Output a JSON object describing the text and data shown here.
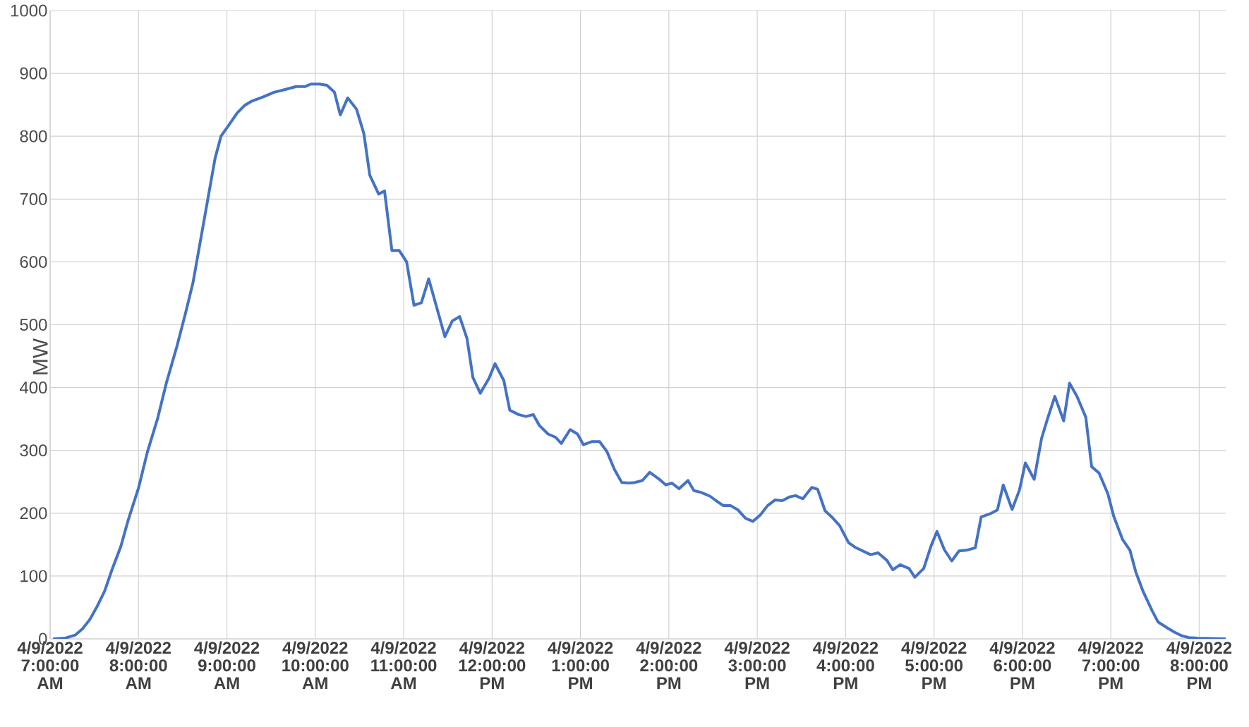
{
  "chart_data": {
    "type": "line",
    "ylabel": "MW",
    "xlim": [
      "2022-04-09T07:00",
      "2022-04-09T20:18"
    ],
    "ylim": [
      0,
      1000
    ],
    "xticks": [
      {
        "value": "2022-04-09T07:00",
        "label": "4/9/2022 7:00:00 AM"
      },
      {
        "value": "2022-04-09T08:00",
        "label": "4/9/2022 8:00:00 AM"
      },
      {
        "value": "2022-04-09T09:00",
        "label": "4/9/2022 9:00:00 AM"
      },
      {
        "value": "2022-04-09T10:00",
        "label": "4/9/2022 10:00:00 AM"
      },
      {
        "value": "2022-04-09T11:00",
        "label": "4/9/2022 11:00:00 AM"
      },
      {
        "value": "2022-04-09T12:00",
        "label": "4/9/2022 12:00:00 PM"
      },
      {
        "value": "2022-04-09T13:00",
        "label": "4/9/2022 1:00:00 PM"
      },
      {
        "value": "2022-04-09T14:00",
        "label": "4/9/2022 2:00:00 PM"
      },
      {
        "value": "2022-04-09T15:00",
        "label": "4/9/2022 3:00:00 PM"
      },
      {
        "value": "2022-04-09T16:00",
        "label": "4/9/2022 4:00:00 PM"
      },
      {
        "value": "2022-04-09T17:00",
        "label": "4/9/2022 5:00:00 PM"
      },
      {
        "value": "2022-04-09T18:00",
        "label": "4/9/2022 6:00:00 PM"
      },
      {
        "value": "2022-04-09T19:00",
        "label": "4/9/2022 7:00:00 PM"
      },
      {
        "value": "2022-04-09T20:00",
        "label": "4/9/2022 8:00:00 PM"
      }
    ],
    "yticks": [
      0,
      100,
      200,
      300,
      400,
      500,
      600,
      700,
      800,
      900,
      1000
    ],
    "grid": true,
    "marker": "none",
    "line_style": "solid",
    "series": [
      {
        "color": "#4472c4",
        "x": [
          "2022-04-09T07:02",
          "2022-04-09T07:10",
          "2022-04-09T07:17",
          "2022-04-09T07:22",
          "2022-04-09T07:27",
          "2022-04-09T07:32",
          "2022-04-09T07:37",
          "2022-04-09T07:42",
          "2022-04-09T07:48",
          "2022-04-09T07:53",
          "2022-04-09T08:00",
          "2022-04-09T08:06",
          "2022-04-09T08:13",
          "2022-04-09T08:19",
          "2022-04-09T08:26",
          "2022-04-09T08:32",
          "2022-04-09T08:37",
          "2022-04-09T08:42",
          "2022-04-09T08:47",
          "2022-04-09T08:52",
          "2022-04-09T08:56",
          "2022-04-09T09:02",
          "2022-04-09T09:07",
          "2022-04-09T09:12",
          "2022-04-09T09:17",
          "2022-04-09T09:25",
          "2022-04-09T09:32",
          "2022-04-09T09:39",
          "2022-04-09T09:47",
          "2022-04-09T09:53",
          "2022-04-09T09:57",
          "2022-04-09T10:03",
          "2022-04-09T10:08",
          "2022-04-09T10:13",
          "2022-04-09T10:17",
          "2022-04-09T10:22",
          "2022-04-09T10:28",
          "2022-04-09T10:33",
          "2022-04-09T10:37",
          "2022-04-09T10:43",
          "2022-04-09T10:47",
          "2022-04-09T10:52",
          "2022-04-09T10:57",
          "2022-04-09T11:02",
          "2022-04-09T11:07",
          "2022-04-09T11:12",
          "2022-04-09T11:17",
          "2022-04-09T11:28",
          "2022-04-09T11:33",
          "2022-04-09T11:38",
          "2022-04-09T11:43",
          "2022-04-09T11:47",
          "2022-04-09T11:52",
          "2022-04-09T11:58",
          "2022-04-09T12:02",
          "2022-04-09T12:08",
          "2022-04-09T12:12",
          "2022-04-09T12:18",
          "2022-04-09T12:23",
          "2022-04-09T12:28",
          "2022-04-09T12:32",
          "2022-04-09T12:38",
          "2022-04-09T12:43",
          "2022-04-09T12:47",
          "2022-04-09T12:53",
          "2022-04-09T12:58",
          "2022-04-09T13:02",
          "2022-04-09T13:08",
          "2022-04-09T13:13",
          "2022-04-09T13:18",
          "2022-04-09T13:23",
          "2022-04-09T13:28",
          "2022-04-09T13:33",
          "2022-04-09T13:37",
          "2022-04-09T13:42",
          "2022-04-09T13:47",
          "2022-04-09T13:53",
          "2022-04-09T13:58",
          "2022-04-09T14:02",
          "2022-04-09T14:07",
          "2022-04-09T14:13",
          "2022-04-09T14:17",
          "2022-04-09T14:22",
          "2022-04-09T14:28",
          "2022-04-09T14:32",
          "2022-04-09T14:37",
          "2022-04-09T14:42",
          "2022-04-09T14:47",
          "2022-04-09T14:52",
          "2022-04-09T14:57",
          "2022-04-09T15:02",
          "2022-04-09T15:07",
          "2022-04-09T15:12",
          "2022-04-09T15:17",
          "2022-04-09T15:22",
          "2022-04-09T15:26",
          "2022-04-09T15:31",
          "2022-04-09T15:37",
          "2022-04-09T15:41",
          "2022-04-09T15:46",
          "2022-04-09T15:51",
          "2022-04-09T15:56",
          "2022-04-09T16:02",
          "2022-04-09T16:07",
          "2022-04-09T16:17",
          "2022-04-09T16:22",
          "2022-04-09T16:28",
          "2022-04-09T16:32",
          "2022-04-09T16:37",
          "2022-04-09T16:43",
          "2022-04-09T16:47",
          "2022-04-09T16:53",
          "2022-04-09T16:58",
          "2022-04-09T17:02",
          "2022-04-09T17:07",
          "2022-04-09T17:12",
          "2022-04-09T17:17",
          "2022-04-09T17:22",
          "2022-04-09T17:28",
          "2022-04-09T17:32",
          "2022-04-09T17:38",
          "2022-04-09T17:43",
          "2022-04-09T17:47",
          "2022-04-09T17:53",
          "2022-04-09T17:58",
          "2022-04-09T18:02",
          "2022-04-09T18:08",
          "2022-04-09T18:13",
          "2022-04-09T18:17",
          "2022-04-09T18:22",
          "2022-04-09T18:28",
          "2022-04-09T18:32",
          "2022-04-09T18:37",
          "2022-04-09T18:43",
          "2022-04-09T18:47",
          "2022-04-09T18:52",
          "2022-04-09T18:58",
          "2022-04-09T19:02",
          "2022-04-09T19:08",
          "2022-04-09T19:13",
          "2022-04-09T19:17",
          "2022-04-09T19:22",
          "2022-04-09T19:28",
          "2022-04-09T19:32",
          "2022-04-09T19:38",
          "2022-04-09T19:43",
          "2022-04-09T19:48",
          "2022-04-09T19:53",
          "2022-04-09T19:59",
          "2022-04-09T20:18"
        ],
        "values": [
          0,
          1,
          6,
          16,
          31,
          52,
          76,
          110,
          147,
          189,
          240,
          297,
          351,
          408,
          465,
          519,
          567,
          633,
          699,
          765,
          800,
          820,
          837,
          849,
          856,
          863,
          870,
          874,
          879,
          879,
          883,
          883,
          881,
          870,
          834,
          861,
          843,
          804,
          738,
          708,
          713,
          618,
          618,
          600,
          531,
          535,
          573,
          481,
          506,
          513,
          478,
          416,
          391,
          415,
          438,
          411,
          364,
          357,
          354,
          357,
          340,
          326,
          321,
          311,
          333,
          326,
          309,
          314,
          314,
          298,
          270,
          249,
          248,
          249,
          252,
          265,
          255,
          245,
          248,
          239,
          252,
          236,
          233,
          227,
          220,
          212,
          212,
          205,
          192,
          187,
          197,
          212,
          221,
          220,
          226,
          228,
          223,
          241,
          238,
          204,
          193,
          180,
          153,
          145,
          134,
          137,
          125,
          110,
          118,
          112,
          98,
          112,
          148,
          171,
          142,
          124,
          140,
          141,
          145,
          194,
          199,
          205,
          245,
          206,
          237,
          280,
          254,
          319,
          350,
          386,
          347,
          407,
          386,
          353,
          274,
          264,
          231,
          195,
          158,
          141,
          106,
          75,
          45,
          27,
          18,
          11,
          5,
          2,
          1,
          0
        ]
      }
    ]
  }
}
